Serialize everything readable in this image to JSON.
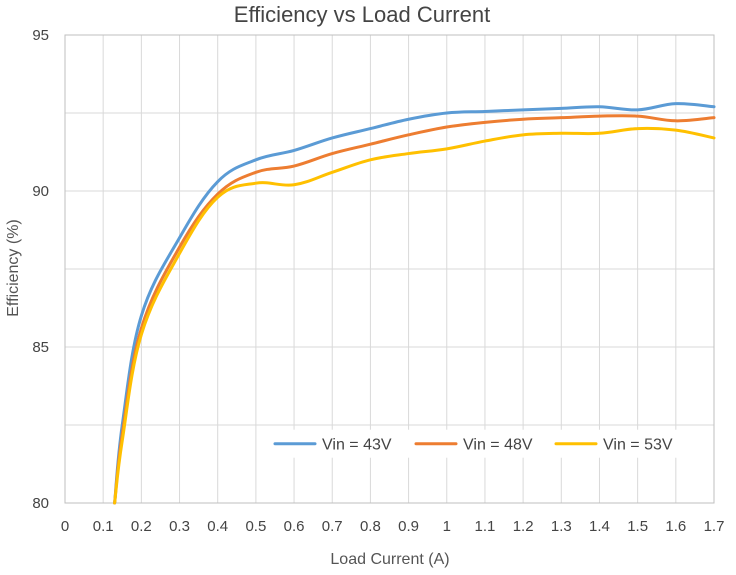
{
  "chart_data": {
    "type": "line",
    "title": "Efficiency vs Load Current",
    "xlabel": "Load Current (A)",
    "ylabel": "Efficiency (%)",
    "xlim": [
      0,
      1.7
    ],
    "ylim": [
      80,
      95
    ],
    "x_ticks": [
      0,
      0.1,
      0.2,
      0.3,
      0.4,
      0.5,
      0.6,
      0.7,
      0.8,
      0.9,
      1,
      1.1,
      1.2,
      1.3,
      1.4,
      1.5,
      1.6,
      1.7
    ],
    "y_ticks": [
      80,
      85,
      90,
      95
    ],
    "grid": true,
    "legend_position": "bottom-right",
    "series": [
      {
        "name": "Vin = 43V",
        "color": "#5B9BD5",
        "x": [
          0.13,
          0.15,
          0.2,
          0.3,
          0.4,
          0.5,
          0.6,
          0.7,
          0.8,
          0.9,
          1,
          1.1,
          1.2,
          1.3,
          1.4,
          1.5,
          1.6,
          1.7
        ],
        "y": [
          80,
          82.5,
          86,
          88.5,
          90.3,
          91.0,
          91.3,
          91.7,
          92.0,
          92.3,
          92.5,
          92.55,
          92.6,
          92.65,
          92.7,
          92.6,
          92.8,
          92.7
        ]
      },
      {
        "name": "Vin = 48V",
        "color": "#ED7D31",
        "x": [
          0.13,
          0.15,
          0.2,
          0.3,
          0.4,
          0.5,
          0.6,
          0.7,
          0.8,
          0.9,
          1,
          1.1,
          1.2,
          1.3,
          1.4,
          1.5,
          1.6,
          1.7
        ],
        "y": [
          80,
          82.2,
          85.6,
          88.2,
          89.9,
          90.6,
          90.8,
          91.2,
          91.5,
          91.8,
          92.05,
          92.2,
          92.3,
          92.35,
          92.4,
          92.4,
          92.25,
          92.35
        ]
      },
      {
        "name": "Vin = 53V",
        "color": "#FFC000",
        "x": [
          0.13,
          0.15,
          0.2,
          0.3,
          0.4,
          0.5,
          0.6,
          0.7,
          0.8,
          0.9,
          1,
          1.1,
          1.2,
          1.3,
          1.4,
          1.5,
          1.6,
          1.7
        ],
        "y": [
          80,
          82.0,
          85.4,
          88.0,
          89.8,
          90.25,
          90.2,
          90.6,
          91.0,
          91.2,
          91.35,
          91.6,
          91.8,
          91.85,
          91.85,
          92.0,
          91.95,
          91.7
        ]
      }
    ]
  }
}
